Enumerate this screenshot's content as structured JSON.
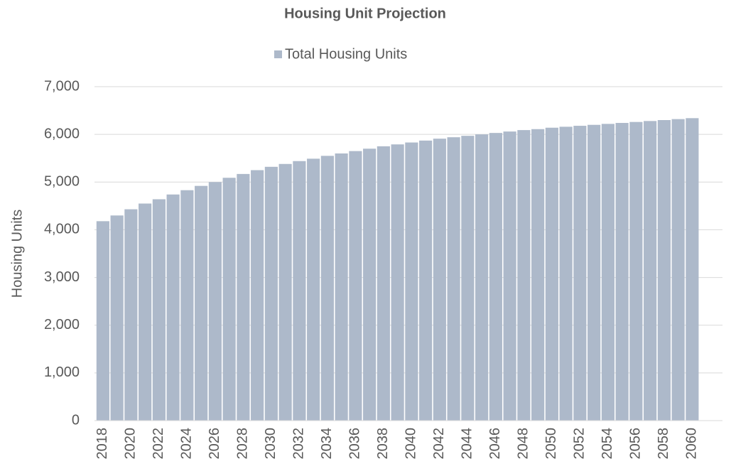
{
  "chart_data": {
    "type": "bar",
    "title": "Housing Unit Projection",
    "ylabel": "Housing Units",
    "categories": [
      "2018",
      null,
      "2020",
      null,
      "2022",
      null,
      "2024",
      null,
      "2026",
      null,
      "2028",
      null,
      "2030",
      null,
      "2032",
      null,
      "2034",
      null,
      "2036",
      null,
      "2038",
      null,
      "2040",
      null,
      "2042",
      null,
      "2044",
      null,
      "2046",
      null,
      "2048",
      null,
      "2050",
      null,
      "2052",
      null,
      "2054",
      null,
      "2056",
      null,
      "2058",
      null,
      "2060"
    ],
    "series": [
      {
        "name": "Total Housing Units",
        "color": "#adb9ca",
        "values": [
          4180,
          4300,
          4430,
          4550,
          4640,
          4740,
          4830,
          4920,
          5000,
          5090,
          5170,
          5250,
          5320,
          5380,
          5440,
          5490,
          5550,
          5600,
          5650,
          5700,
          5750,
          5790,
          5830,
          5870,
          5910,
          5940,
          5970,
          6000,
          6030,
          6060,
          6090,
          6110,
          6140,
          6160,
          6180,
          6200,
          6220,
          6240,
          6260,
          6280,
          6300,
          6320,
          6340
        ]
      }
    ],
    "ylim": [
      0,
      7000
    ],
    "yticks": [
      0,
      {
        "value": 1000,
        "label": "1,000"
      },
      {
        "value": 2000,
        "label": "2,000"
      },
      {
        "value": 3000,
        "label": "3,000"
      },
      {
        "value": 4000,
        "label": "4,000"
      },
      {
        "value": 5000,
        "label": "5,000"
      },
      {
        "value": 6000,
        "label": "6,000"
      },
      {
        "value": 7000,
        "label": "7,000"
      }
    ],
    "grid": true,
    "legend": "top"
  }
}
